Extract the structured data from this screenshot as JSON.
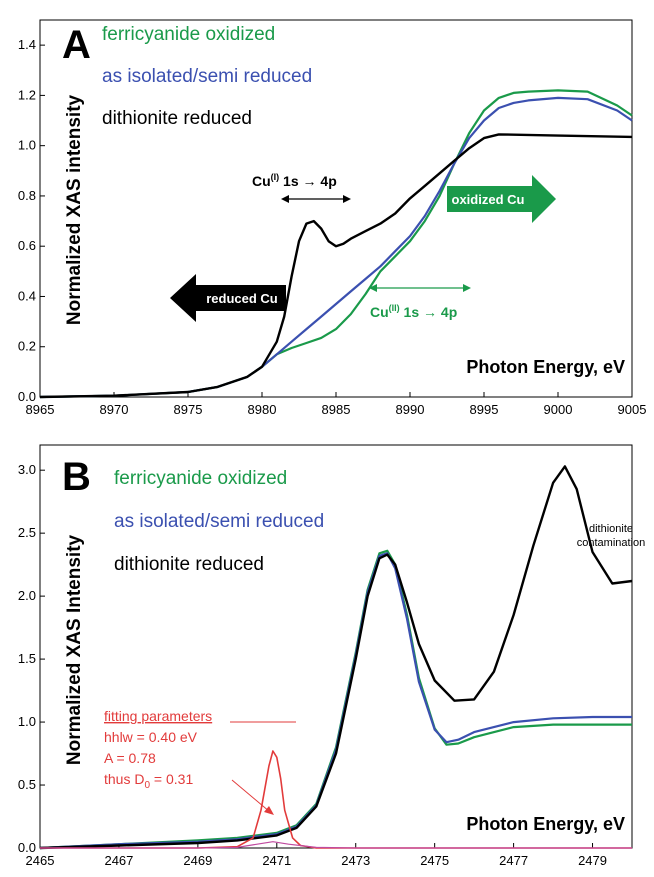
{
  "chart_data": [
    {
      "panel": "A",
      "type": "line",
      "ylabel": "Normalized XAS intensity",
      "xlabel": "Photon Energy, eV",
      "xlim": [
        8965,
        9005
      ],
      "ylim": [
        0,
        1.5
      ],
      "xticks": [
        "8965",
        "8970",
        "8975",
        "8980",
        "8985",
        "8990",
        "8995",
        "9000",
        "9005"
      ],
      "yticks": [
        "0.0",
        "0.2",
        "0.4",
        "0.6",
        "0.8",
        "1.0",
        "1.2",
        "1.4"
      ],
      "legend": [
        {
          "label": "ferricyanide oxidized",
          "color": "#1a9a4a"
        },
        {
          "label": "as isolated/semi reduced",
          "color": "#3b50b0"
        },
        {
          "label": "dithionite reduced",
          "color": "#000000"
        }
      ],
      "annotations": {
        "cu1": "Cu",
        "cu1_sup": "(I)",
        "cu1_rest": " 1s → 4p",
        "cu2": "Cu",
        "cu2_sup": "(II)",
        "cu2_rest": " 1s → 4p",
        "oxidized_arrow": "oxidized Cu",
        "reduced_arrow": "reduced Cu"
      },
      "series": [
        {
          "color": "#1a9a4a",
          "x": [
            8965,
            8970,
            8975,
            8977,
            8979,
            8980,
            8981,
            8982,
            8983,
            8984,
            8985,
            8986,
            8987,
            8988,
            8989,
            8990,
            8991,
            8992,
            8993,
            8994,
            8995,
            8996,
            8997,
            8998,
            9000,
            9002,
            9004,
            9005
          ],
          "y": [
            0.0,
            0.005,
            0.02,
            0.04,
            0.08,
            0.12,
            0.17,
            0.195,
            0.215,
            0.235,
            0.27,
            0.33,
            0.41,
            0.5,
            0.56,
            0.62,
            0.7,
            0.8,
            0.93,
            1.05,
            1.14,
            1.19,
            1.21,
            1.215,
            1.22,
            1.215,
            1.16,
            1.12
          ]
        },
        {
          "color": "#3b50b0",
          "x": [
            8965,
            8970,
            8975,
            8977,
            8979,
            8980,
            8981,
            8982,
            8983,
            8984,
            8985,
            8986,
            8987,
            8988,
            8989,
            8990,
            8991,
            8992,
            8993,
            8994,
            8995,
            8996,
            8997,
            8998,
            9000,
            9002,
            9004,
            9005
          ],
          "y": [
            0.0,
            0.005,
            0.02,
            0.04,
            0.08,
            0.12,
            0.17,
            0.22,
            0.27,
            0.32,
            0.37,
            0.42,
            0.47,
            0.52,
            0.58,
            0.64,
            0.72,
            0.82,
            0.93,
            1.03,
            1.1,
            1.15,
            1.17,
            1.18,
            1.19,
            1.185,
            1.14,
            1.1
          ]
        },
        {
          "color": "#000000",
          "x": [
            8965,
            8970,
            8975,
            8977,
            8979,
            8980,
            8981,
            8981.5,
            8982,
            8982.5,
            8983,
            8983.5,
            8984,
            8984.5,
            8985,
            8985.5,
            8986,
            8987,
            8988,
            8989,
            8990,
            8991,
            8992,
            8993,
            8994,
            8995,
            8996,
            9000,
            9005
          ],
          "y": [
            0.0,
            0.005,
            0.02,
            0.04,
            0.08,
            0.12,
            0.22,
            0.32,
            0.48,
            0.62,
            0.69,
            0.7,
            0.67,
            0.62,
            0.6,
            0.61,
            0.63,
            0.66,
            0.69,
            0.73,
            0.79,
            0.84,
            0.89,
            0.94,
            0.99,
            1.03,
            1.045,
            1.04,
            1.035
          ]
        }
      ]
    },
    {
      "panel": "B",
      "type": "line",
      "ylabel": "Normalized XAS Intensity",
      "xlabel": "Photon Energy, eV",
      "xlim": [
        2465,
        2480
      ],
      "ylim": [
        0,
        3.2
      ],
      "xticks": [
        "2465",
        "2467",
        "2469",
        "2471",
        "2473",
        "2475",
        "2477",
        "2479"
      ],
      "yticks": [
        "0.0",
        "0.5",
        "1.0",
        "1.5",
        "2.0",
        "2.5",
        "3.0"
      ],
      "legend": [
        {
          "label": "ferricyanide oxidized",
          "color": "#1a9a4a"
        },
        {
          "label": "as isolated/semi reduced",
          "color": "#3b50b0"
        },
        {
          "label": "dithionite reduced",
          "color": "#000000"
        }
      ],
      "annotations": {
        "fitting_title": "fitting parameters",
        "hhlw": "hhlw = 0.40 eV",
        "amp": "A = 0.78",
        "thus": "thus D",
        "thus_sub": "0",
        "thus_rest": " = 0.31",
        "contamination_line1": "dithionite",
        "contamination_line2": "contamination"
      },
      "series": [
        {
          "color": "#1a9a4a",
          "x": [
            2465,
            2467,
            2469,
            2470,
            2471,
            2471.5,
            2472,
            2472.5,
            2473,
            2473.3,
            2473.6,
            2473.8,
            2474,
            2474.3,
            2474.6,
            2475,
            2475.3,
            2475.6,
            2476,
            2477,
            2478,
            2479,
            2480
          ],
          "y": [
            0.0,
            0.03,
            0.06,
            0.08,
            0.12,
            0.18,
            0.35,
            0.8,
            1.55,
            2.05,
            2.34,
            2.36,
            2.25,
            1.85,
            1.35,
            0.95,
            0.82,
            0.83,
            0.88,
            0.96,
            0.98,
            0.98,
            0.98
          ]
        },
        {
          "color": "#3b50b0",
          "x": [
            2465,
            2467,
            2469,
            2470,
            2471,
            2471.5,
            2472,
            2472.5,
            2473,
            2473.3,
            2473.6,
            2473.8,
            2474,
            2474.3,
            2474.6,
            2475,
            2475.3,
            2475.6,
            2476,
            2477,
            2478,
            2479,
            2480
          ],
          "y": [
            0.0,
            0.03,
            0.05,
            0.07,
            0.11,
            0.17,
            0.34,
            0.78,
            1.53,
            2.03,
            2.32,
            2.34,
            2.22,
            1.82,
            1.32,
            0.94,
            0.84,
            0.86,
            0.92,
            1.0,
            1.03,
            1.04,
            1.04
          ]
        },
        {
          "color": "#000000",
          "x": [
            2465,
            2467,
            2469,
            2470,
            2471,
            2471.5,
            2472,
            2472.5,
            2473,
            2473.3,
            2473.6,
            2473.8,
            2474,
            2474.3,
            2474.6,
            2475,
            2475.5,
            2476,
            2476.5,
            2477,
            2477.5,
            2478,
            2478.3,
            2478.6,
            2479,
            2479.5,
            2480
          ],
          "y": [
            0.0,
            0.02,
            0.04,
            0.06,
            0.1,
            0.16,
            0.33,
            0.75,
            1.5,
            2.0,
            2.3,
            2.33,
            2.25,
            1.95,
            1.62,
            1.33,
            1.17,
            1.18,
            1.4,
            1.85,
            2.4,
            2.9,
            3.03,
            2.85,
            2.35,
            2.1,
            2.12
          ]
        },
        {
          "color": "#e23b3b",
          "x": [
            2465,
            2469,
            2470,
            2470.4,
            2470.6,
            2470.8,
            2470.9,
            2471,
            2471.1,
            2471.2,
            2471.4,
            2471.6,
            2472,
            2473,
            2480
          ],
          "y": [
            0.0,
            0.0,
            0.01,
            0.08,
            0.3,
            0.65,
            0.77,
            0.72,
            0.55,
            0.3,
            0.08,
            0.02,
            0.0,
            0.0,
            0.0
          ]
        },
        {
          "color": "#c04aa0",
          "x": [
            2465,
            2469,
            2470,
            2470.5,
            2470.9,
            2471.3,
            2472,
            2473,
            2480
          ],
          "y": [
            0.0,
            0.0,
            0.005,
            0.03,
            0.05,
            0.03,
            0.005,
            0.0,
            0.0
          ]
        }
      ]
    }
  ]
}
